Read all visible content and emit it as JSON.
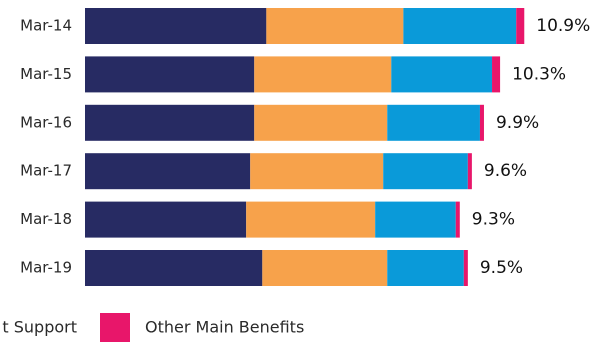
{
  "chart_data": {
    "type": "stacked-bar-horizontal",
    "categories": [
      "Mar-14",
      "Mar-15",
      "Mar-16",
      "Mar-17",
      "Mar-18",
      "Mar-19"
    ],
    "series": [
      {
        "color": "#272b63",
        "values": [
          4.5,
          4.2,
          4.2,
          4.1,
          4.0,
          4.4
        ]
      },
      {
        "color": "#f7a24b",
        "values": [
          3.4,
          3.4,
          3.3,
          3.3,
          3.2,
          3.1
        ]
      },
      {
        "name": "t Support",
        "color": "#0a9ad9",
        "values": [
          2.8,
          2.5,
          2.3,
          2.1,
          2.0,
          1.9
        ]
      },
      {
        "name": "Other Main Benefits",
        "color": "#e8166a",
        "values": [
          0.2,
          0.2,
          0.1,
          0.1,
          0.1,
          0.1
        ]
      }
    ],
    "totals": [
      10.9,
      10.3,
      9.9,
      9.6,
      9.3,
      9.5
    ],
    "total_labels": [
      "10.9%",
      "10.3%",
      "9.9%",
      "9.6%",
      "9.3%",
      "9.5%"
    ]
  }
}
